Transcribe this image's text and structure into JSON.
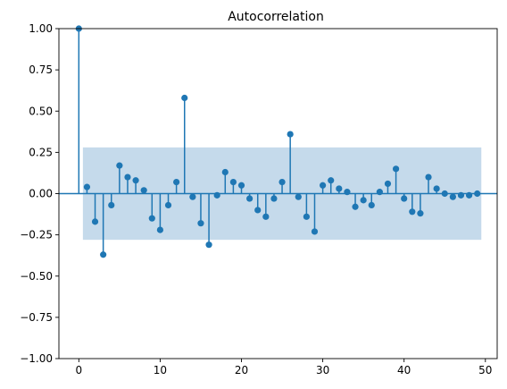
{
  "chart_data": {
    "type": "stem",
    "title": "Autocorrelation",
    "xlabel": "",
    "ylabel": "",
    "xlim": [
      -2.45,
      51.45
    ],
    "ylim": [
      -1.0,
      1.0
    ],
    "x_ticks": [
      0,
      10,
      20,
      30,
      40,
      50
    ],
    "y_ticks": [
      -1.0,
      -0.75,
      -0.5,
      -0.25,
      0.0,
      0.25,
      0.5,
      0.75,
      1.0
    ],
    "y_tick_labels": [
      "−1.00",
      "−0.75",
      "−0.50",
      "−0.25",
      "0.00",
      "0.25",
      "0.50",
      "0.75",
      "1.00"
    ],
    "grid": false,
    "confidence_band": {
      "x_range": [
        0.5,
        49.5
      ],
      "upper": 0.28,
      "lower": -0.28,
      "color": "#c5daeb"
    },
    "series_color": "#1f77b4",
    "lags": [
      0,
      1,
      2,
      3,
      4,
      5,
      6,
      7,
      8,
      9,
      10,
      11,
      12,
      13,
      14,
      15,
      16,
      17,
      18,
      19,
      20,
      21,
      22,
      23,
      24,
      25,
      26,
      27,
      28,
      29,
      30,
      31,
      32,
      33,
      34,
      35,
      36,
      37,
      38,
      39,
      40,
      41,
      42,
      43,
      44,
      45,
      46,
      47,
      48,
      49
    ],
    "values": [
      1.0,
      0.04,
      -0.17,
      -0.37,
      -0.07,
      0.17,
      0.1,
      0.08,
      0.02,
      -0.15,
      -0.22,
      -0.07,
      0.07,
      0.58,
      -0.02,
      -0.18,
      -0.31,
      -0.01,
      0.13,
      0.07,
      0.05,
      -0.03,
      -0.1,
      -0.14,
      -0.03,
      0.07,
      0.36,
      -0.02,
      -0.14,
      -0.23,
      0.05,
      0.08,
      0.03,
      0.01,
      -0.08,
      -0.04,
      -0.07,
      0.01,
      0.06,
      0.15,
      -0.03,
      -0.11,
      -0.12,
      0.1,
      0.03,
      0.0,
      -0.02,
      -0.01,
      -0.01,
      0.0
    ]
  }
}
